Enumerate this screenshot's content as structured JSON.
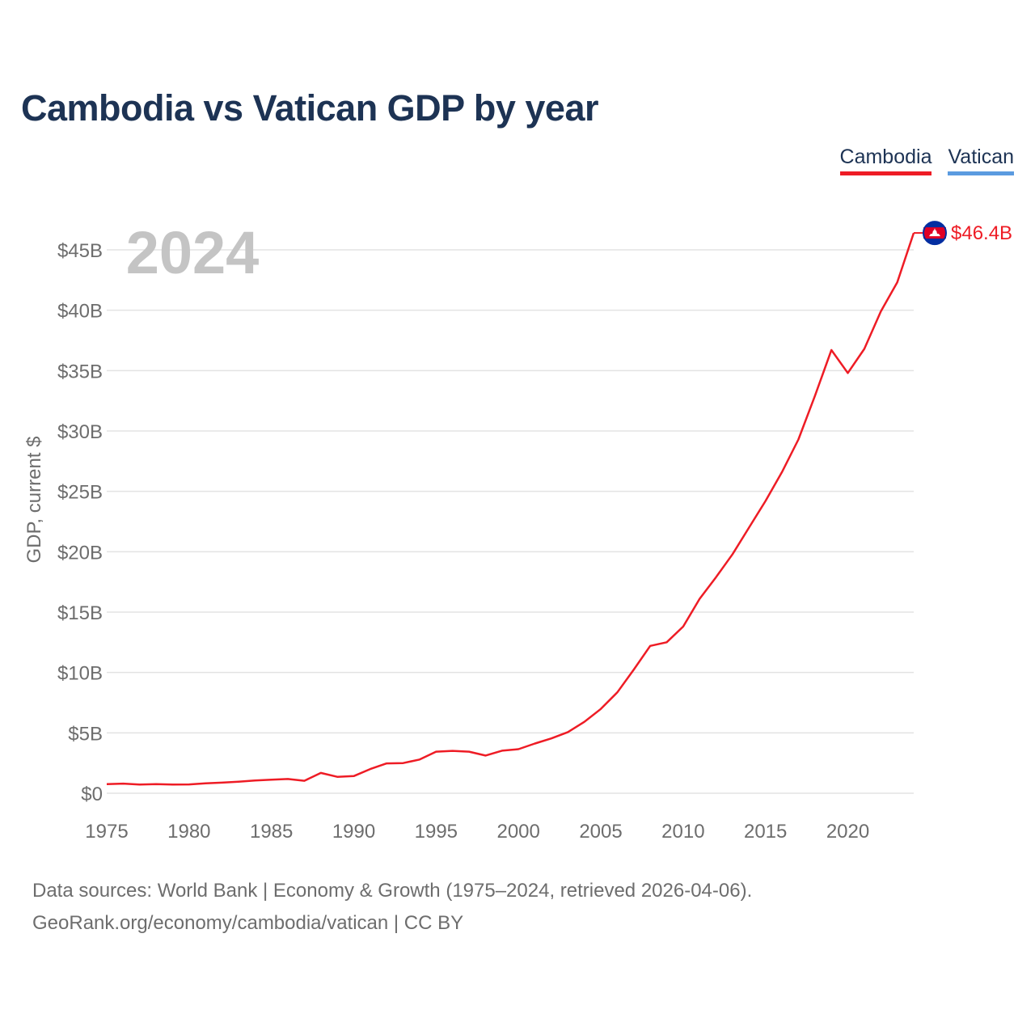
{
  "title": "Cambodia vs Vatican GDP by year",
  "legend": [
    {
      "name": "Cambodia",
      "color": "#ee1c25"
    },
    {
      "name": "Vatican",
      "color": "#5b9be0"
    }
  ],
  "year_label": "2024",
  "end_label": "$46.4B",
  "footer": {
    "line1": "Data sources: World Bank | Economy & Growth (1975–2024, retrieved 2026-04-06).",
    "line2": "GeoRank.org/economy/cambodia/vatican | CC BY"
  },
  "chart_data": {
    "type": "line",
    "title": "Cambodia vs Vatican GDP by year",
    "xlabel": "",
    "ylabel": "GDP, current $",
    "xlim": [
      1975,
      2024
    ],
    "ylim": [
      0,
      45
    ],
    "x_ticks": [
      1975,
      1980,
      1985,
      1990,
      1995,
      2000,
      2005,
      2010,
      2015,
      2020
    ],
    "y_ticks": [
      {
        "value": 0,
        "label": "$0"
      },
      {
        "value": 5,
        "label": "$5B"
      },
      {
        "value": 10,
        "label": "$10B"
      },
      {
        "value": 15,
        "label": "$15B"
      },
      {
        "value": 20,
        "label": "$20B"
      },
      {
        "value": 25,
        "label": "$25B"
      },
      {
        "value": 30,
        "label": "$30B"
      },
      {
        "value": 35,
        "label": "$35B"
      },
      {
        "value": 40,
        "label": "$40B"
      },
      {
        "value": 45,
        "label": "$45B"
      }
    ],
    "units": "billions USD",
    "grid": true,
    "series": [
      {
        "name": "Cambodia",
        "color": "#ee1c25",
        "x": [
          1975,
          1976,
          1977,
          1978,
          1979,
          1980,
          1981,
          1982,
          1983,
          1984,
          1985,
          1986,
          1987,
          1988,
          1989,
          1990,
          1991,
          1992,
          1993,
          1994,
          1995,
          1996,
          1997,
          1998,
          1999,
          2000,
          2001,
          2002,
          2003,
          2004,
          2005,
          2006,
          2007,
          2008,
          2009,
          2010,
          2011,
          2012,
          2013,
          2014,
          2015,
          2016,
          2017,
          2018,
          2019,
          2020,
          2021,
          2022,
          2023,
          2024
        ],
        "values": [
          0.75,
          0.8,
          0.72,
          0.76,
          0.72,
          0.73,
          0.82,
          0.88,
          0.95,
          1.05,
          1.12,
          1.18,
          1.03,
          1.68,
          1.36,
          1.42,
          2.0,
          2.47,
          2.5,
          2.79,
          3.44,
          3.51,
          3.44,
          3.12,
          3.52,
          3.65,
          4.12,
          4.54,
          5.06,
          5.91,
          6.98,
          8.35,
          10.24,
          12.2,
          12.5,
          13.8,
          16.1,
          17.9,
          19.8,
          22.0,
          24.2,
          26.6,
          29.3,
          32.9,
          36.7,
          34.8,
          36.8,
          39.9,
          42.3,
          46.4
        ]
      },
      {
        "name": "Vatican",
        "color": "#5b9be0",
        "x": [],
        "values": []
      }
    ]
  }
}
